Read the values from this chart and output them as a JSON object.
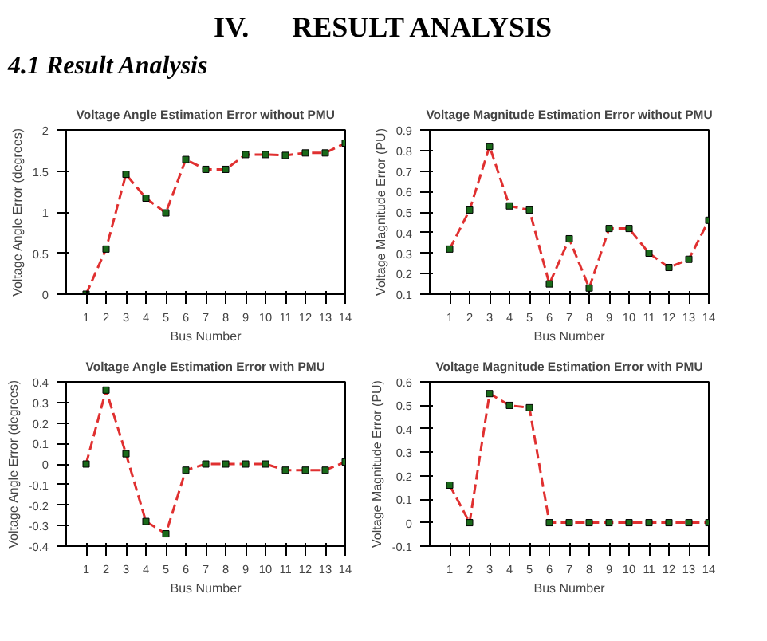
{
  "chart_data": [
    {
      "type": "line",
      "title": "Voltage Angle Estimation Error without PMU",
      "xlabel": "Bus Number",
      "ylabel": "Voltage Angle Error (degrees)",
      "annotations": [
        "IV.      RESULT ANALYSIS",
        "4.1 Result Analysis"
      ],
      "x": [
        1,
        2,
        3,
        4,
        5,
        6,
        7,
        8,
        9,
        10,
        11,
        12,
        13,
        14
      ],
      "xlim": [
        0,
        14
      ],
      "xticks": [
        1,
        2,
        3,
        4,
        5,
        6,
        7,
        8,
        9,
        10,
        11,
        12,
        13,
        14
      ],
      "ylim": [
        0,
        2
      ],
      "yticks": [
        0,
        0.5,
        1,
        1.5,
        2
      ],
      "marker": "square",
      "line_style": "dashed",
      "grid": false,
      "series": [
        {
          "color": "#e03030",
          "values": [
            0,
            0.55,
            1.46,
            1.17,
            0.99,
            1.64,
            1.52,
            1.52,
            1.7,
            1.7,
            1.69,
            1.72,
            1.72,
            1.84
          ]
        }
      ]
    },
    {
      "type": "line",
      "title": "Voltage Magnitude Estimation Error without PMU",
      "xlabel": "Bus Number",
      "ylabel": "Voltage Magnitude Error (PU)",
      "x": [
        1,
        2,
        3,
        4,
        5,
        6,
        7,
        8,
        9,
        10,
        11,
        12,
        13,
        14
      ],
      "xlim": [
        0,
        14
      ],
      "xticks": [
        1,
        2,
        3,
        4,
        5,
        6,
        7,
        8,
        9,
        10,
        11,
        12,
        13,
        14
      ],
      "ylim": [
        0.1,
        0.9
      ],
      "yticks": [
        0.1,
        0.2,
        0.3,
        0.4,
        0.5,
        0.6,
        0.7,
        0.8,
        0.9
      ],
      "marker": "square",
      "line_style": "dashed",
      "grid": false,
      "series": [
        {
          "color": "#e03030",
          "values": [
            0.32,
            0.51,
            0.82,
            0.53,
            0.51,
            0.15,
            0.37,
            0.13,
            0.42,
            0.42,
            0.3,
            0.23,
            0.27,
            0.46
          ]
        }
      ]
    },
    {
      "type": "line",
      "title": "Voltage Angle Estimation Error with PMU",
      "xlabel": "Bus Number",
      "ylabel": "Voltage Angle Error (degrees)",
      "x": [
        1,
        2,
        3,
        4,
        5,
        6,
        7,
        8,
        9,
        10,
        11,
        12,
        13,
        14
      ],
      "xlim": [
        0,
        14
      ],
      "xticks": [
        1,
        2,
        3,
        4,
        5,
        6,
        7,
        8,
        9,
        10,
        11,
        12,
        13,
        14
      ],
      "ylim": [
        -0.4,
        0.4
      ],
      "yticks": [
        -0.4,
        -0.3,
        -0.2,
        -0.1,
        0,
        0.1,
        0.2,
        0.3,
        0.4
      ],
      "marker": "square",
      "line_style": "dashed",
      "grid": false,
      "series": [
        {
          "color": "#e03030",
          "values": [
            0,
            0.36,
            0.05,
            -0.28,
            -0.34,
            -0.03,
            0,
            0,
            0,
            0,
            -0.03,
            -0.03,
            -0.03,
            0.01
          ]
        }
      ]
    },
    {
      "type": "line",
      "title": "Voltage Magnitude Estimation Error with PMU",
      "xlabel": "Bus Number",
      "ylabel": "Voltage Magnitude Error (PU)",
      "x": [
        1,
        2,
        3,
        4,
        5,
        6,
        7,
        8,
        9,
        10,
        11,
        12,
        13,
        14
      ],
      "xlim": [
        0,
        14
      ],
      "xticks": [
        1,
        2,
        3,
        4,
        5,
        6,
        7,
        8,
        9,
        10,
        11,
        12,
        13,
        14
      ],
      "ylim": [
        -0.1,
        0.6
      ],
      "yticks": [
        -0.1,
        0,
        0.1,
        0.2,
        0.3,
        0.4,
        0.5,
        0.6
      ],
      "marker": "square",
      "line_style": "dashed",
      "grid": false,
      "series": [
        {
          "color": "#e03030",
          "values": [
            0.16,
            0,
            0.55,
            0.5,
            0.49,
            0,
            0,
            0,
            0,
            0,
            0,
            0,
            0,
            0
          ]
        }
      ]
    }
  ]
}
